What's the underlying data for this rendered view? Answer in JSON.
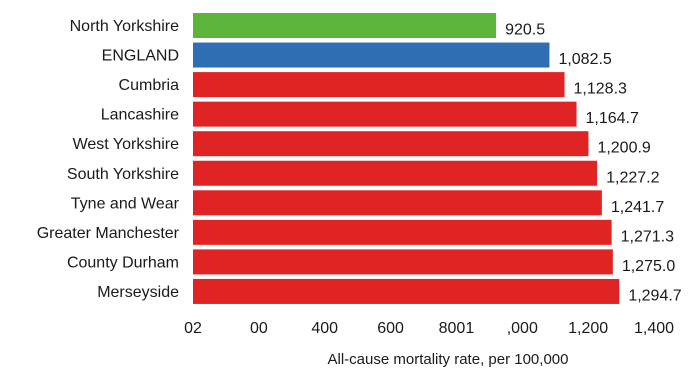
{
  "chart_data": {
    "type": "bar",
    "orientation": "horizontal",
    "categories": [
      "North Yorkshire",
      "ENGLAND",
      "Cumbria",
      "Lancashire",
      "West Yorkshire",
      "South Yorkshire",
      "Tyne and Wear",
      "Greater Manchester",
      "County Durham",
      "Merseyside"
    ],
    "values": [
      920.5,
      1082.5,
      1128.3,
      1164.7,
      1200.9,
      1227.2,
      1241.7,
      1271.3,
      1275.0,
      1294.7
    ],
    "value_labels": [
      "920.5",
      "1,082.5",
      "1,128.3",
      "1,164.7",
      "1,200.9",
      "1,227.2",
      "1,241.7",
      "1,271.3",
      "1,275.0",
      "1,294.7"
    ],
    "bar_colors": [
      "#5db43b",
      "#2f6db5",
      "#e02424",
      "#e02424",
      "#e02424",
      "#e02424",
      "#e02424",
      "#e02424",
      "#e02424",
      "#e02424"
    ],
    "tick_labels": [
      "02",
      "00",
      "400",
      "600",
      "8001",
      ",000",
      "1,200",
      "1,400"
    ],
    "xlabel": "All-cause mortality rate, per 100,000",
    "xlim": [
      0,
      1400
    ],
    "grid": false,
    "legend": "none"
  }
}
